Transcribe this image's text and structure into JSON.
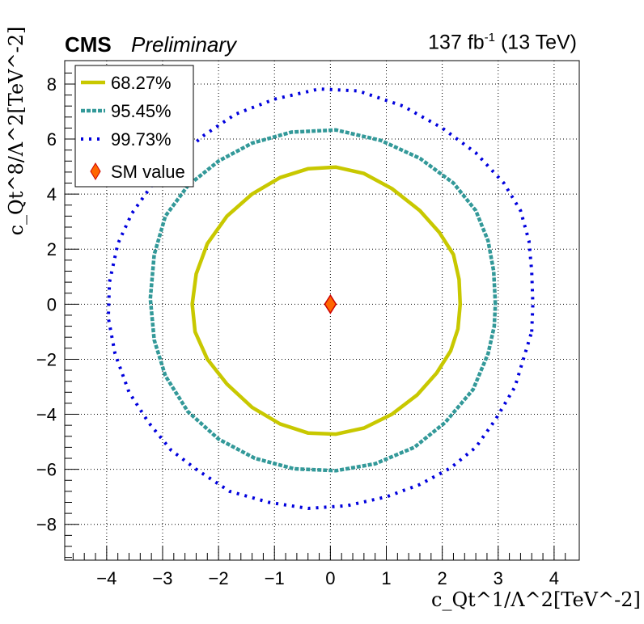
{
  "header": {
    "experiment": "CMS",
    "status": "Preliminary",
    "luminosity": "137 fb",
    "lumi_exponent": "-1",
    "energy": "(13 TeV)"
  },
  "colors": {
    "contour_68": "#c8c800",
    "contour_95": "#339999",
    "contour_99": "#0000dd",
    "sm_fill": "#ff6600",
    "sm_edge": "#cc0000"
  },
  "chart_data": {
    "type": "contour",
    "xlabel": "c_Qt^1/Λ^2[TeV^-2]",
    "ylabel": "c_Qt^8/Λ^2[TeV^-2]",
    "xlim": [
      -4.75,
      4.45
    ],
    "ylim": [
      -9.3,
      8.85
    ],
    "xticks": [
      -4,
      -3,
      -2,
      -1,
      0,
      1,
      2,
      3,
      4
    ],
    "yticks": [
      -8,
      -6,
      -4,
      -2,
      0,
      2,
      4,
      6,
      8
    ],
    "grid": true,
    "legend_position": "top-left",
    "series": [
      {
        "name": "68.27%",
        "style": "solid",
        "points": [
          [
            2.32,
            0
          ],
          [
            2.3,
            0.9
          ],
          [
            2.2,
            1.8
          ],
          [
            1.95,
            2.6
          ],
          [
            1.6,
            3.4
          ],
          [
            1.1,
            4.2
          ],
          [
            0.6,
            4.75
          ],
          [
            0.1,
            4.98
          ],
          [
            -0.4,
            4.92
          ],
          [
            -0.9,
            4.6
          ],
          [
            -1.4,
            4.0
          ],
          [
            -1.85,
            3.2
          ],
          [
            -2.2,
            2.2
          ],
          [
            -2.4,
            1.1
          ],
          [
            -2.47,
            0
          ],
          [
            -2.42,
            -1.0
          ],
          [
            -2.2,
            -2.0
          ],
          [
            -1.85,
            -2.9
          ],
          [
            -1.4,
            -3.75
          ],
          [
            -0.9,
            -4.35
          ],
          [
            -0.4,
            -4.68
          ],
          [
            0.1,
            -4.72
          ],
          [
            0.6,
            -4.5
          ],
          [
            1.1,
            -4.0
          ],
          [
            1.55,
            -3.3
          ],
          [
            1.9,
            -2.5
          ],
          [
            2.15,
            -1.7
          ],
          [
            2.28,
            -0.9
          ]
        ]
      },
      {
        "name": "95.45%",
        "style": "dashed",
        "points": [
          [
            2.95,
            0
          ],
          [
            2.92,
            1.2
          ],
          [
            2.82,
            2.3
          ],
          [
            2.6,
            3.4
          ],
          [
            2.2,
            4.4
          ],
          [
            1.6,
            5.3
          ],
          [
            0.9,
            5.95
          ],
          [
            0.1,
            6.33
          ],
          [
            -0.7,
            6.25
          ],
          [
            -1.4,
            5.85
          ],
          [
            -2.0,
            5.2
          ],
          [
            -2.55,
            4.3
          ],
          [
            -2.95,
            3.2
          ],
          [
            -3.15,
            1.8
          ],
          [
            -3.22,
            0.2
          ],
          [
            -3.15,
            -1.3
          ],
          [
            -2.95,
            -2.6
          ],
          [
            -2.55,
            -3.9
          ],
          [
            -2.0,
            -4.9
          ],
          [
            -1.35,
            -5.6
          ],
          [
            -0.65,
            -5.98
          ],
          [
            0.1,
            -6.05
          ],
          [
            0.8,
            -5.8
          ],
          [
            1.5,
            -5.2
          ],
          [
            2.05,
            -4.3
          ],
          [
            2.55,
            -3.1
          ],
          [
            2.82,
            -1.8
          ],
          [
            2.93,
            -0.8
          ]
        ]
      },
      {
        "name": "99.73%",
        "style": "dotted",
        "points": [
          [
            3.6,
            -1.0
          ],
          [
            3.62,
            0
          ],
          [
            3.6,
            1.2
          ],
          [
            3.55,
            2.3
          ],
          [
            3.4,
            3.4
          ],
          [
            3.1,
            4.4
          ],
          [
            2.6,
            5.5
          ],
          [
            2.0,
            6.4
          ],
          [
            1.3,
            7.2
          ],
          [
            0.5,
            7.75
          ],
          [
            -0.2,
            7.82
          ],
          [
            -1.0,
            7.45
          ],
          [
            -1.7,
            6.9
          ],
          [
            -2.25,
            6.15
          ],
          [
            -2.75,
            5.3
          ],
          [
            -3.2,
            4.3
          ],
          [
            -3.55,
            3.3
          ],
          [
            -3.8,
            2.2
          ],
          [
            -3.95,
            0.8
          ],
          [
            -3.97,
            -0.5
          ],
          [
            -3.85,
            -1.8
          ],
          [
            -3.6,
            -3.2
          ],
          [
            -3.25,
            -4.3
          ],
          [
            -2.85,
            -5.3
          ],
          [
            -2.4,
            -6.0
          ],
          [
            -1.8,
            -6.8
          ],
          [
            -1.1,
            -7.2
          ],
          [
            -0.4,
            -7.42
          ],
          [
            0.3,
            -7.32
          ],
          [
            1.0,
            -7.0
          ],
          [
            1.6,
            -6.55
          ],
          [
            2.15,
            -5.95
          ],
          [
            2.6,
            -5.2
          ],
          [
            2.95,
            -4.2
          ],
          [
            3.3,
            -3.0
          ]
        ]
      },
      {
        "name": "SM value",
        "style": "marker",
        "points": [
          [
            0,
            0
          ]
        ]
      }
    ]
  }
}
